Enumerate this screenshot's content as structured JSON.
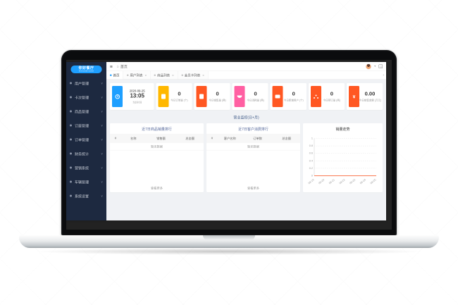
{
  "window": {
    "logo": {
      "title": "你好餐厅",
      "subtitle": "RESTAURANT ADMIN"
    },
    "sidebar": {
      "items": [
        {
          "label": "用户管理"
        },
        {
          "label": "卡次管理"
        },
        {
          "label": "商品管理"
        },
        {
          "label": "订座管理"
        },
        {
          "label": "订单管理"
        },
        {
          "label": "财务统计"
        },
        {
          "label": "营销系统"
        },
        {
          "label": "车辆管理"
        },
        {
          "label": "系统设置"
        }
      ]
    },
    "topbar": {
      "breadcrumb": "首页"
    },
    "tabs": [
      {
        "label": "首页"
      },
      {
        "label": "用户列表"
      },
      {
        "label": "商品列表"
      },
      {
        "label": "会员卡列表"
      }
    ],
    "time_card": {
      "date": "2020-09-25",
      "time": "13:05",
      "caption": "当前时间",
      "color": "#1E9FFF"
    },
    "stat_cards": [
      {
        "value": "0",
        "label": "今日订单量 (个)",
        "color": "#FFB800"
      },
      {
        "value": "0",
        "label": "今日销售量 (两)",
        "color": "#FF5722"
      },
      {
        "value": "0",
        "label": "今日消耗量 (两)",
        "color": "#FF5FA2"
      },
      {
        "value": "0",
        "label": "今日新增用户 (个)",
        "color": "#FF5722"
      },
      {
        "value": "0",
        "label": "今日预订量 (两)",
        "color": "#FF5722"
      },
      {
        "value": "0.00",
        "label": "今日销售金额 (万元)",
        "color": "#FF5722",
        "glyph": "¥"
      }
    ],
    "monitor_link": "营业监控(日+月)",
    "panels": {
      "machine_rank": {
        "title": "近7日商品销量排行",
        "headers": [
          "#",
          "名称",
          "销售额",
          "总金额"
        ],
        "empty": "暂无数据",
        "footer": "查看更多"
      },
      "customer_rank": {
        "title": "近7日客户消费排行",
        "headers": [
          "#",
          "客户名称",
          "订单数",
          "总金额"
        ],
        "empty": "暂无数据",
        "footer": "查看更多"
      }
    }
  },
  "chart_data": {
    "type": "line",
    "title": "销量走势",
    "x": [
      "09-19",
      "09-20",
      "09-21",
      "09-22",
      "09-23",
      "09-24",
      "09-25"
    ],
    "series": [
      {
        "name": "销量",
        "values": [
          0,
          0,
          0,
          0,
          0,
          0,
          0
        ]
      }
    ],
    "ylim": [
      0,
      1
    ],
    "yticks": [
      0,
      0.2,
      0.4,
      0.6,
      0.8,
      1
    ],
    "grid": true,
    "legend": false,
    "line_color": "#FF5722"
  }
}
